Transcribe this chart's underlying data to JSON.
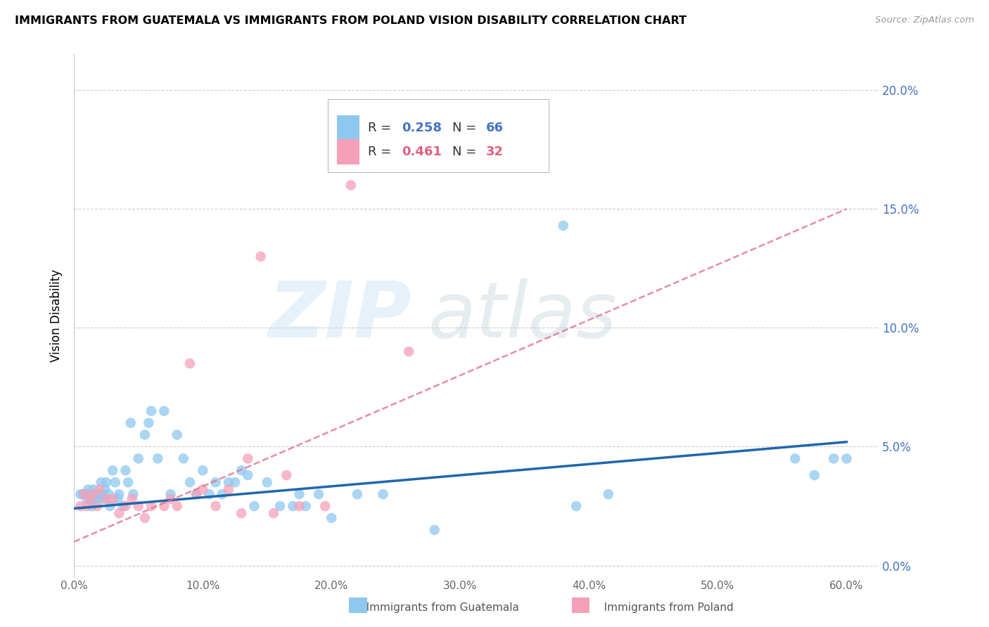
{
  "title": "IMMIGRANTS FROM GUATEMALA VS IMMIGRANTS FROM POLAND VISION DISABILITY CORRELATION CHART",
  "source": "Source: ZipAtlas.com",
  "ylabel": "Vision Disability",
  "ytick_values": [
    0.0,
    0.05,
    0.1,
    0.15,
    0.2
  ],
  "xtick_values": [
    0.0,
    0.1,
    0.2,
    0.3,
    0.4,
    0.5,
    0.6
  ],
  "xlim": [
    0.0,
    0.625
  ],
  "ylim": [
    -0.005,
    0.215
  ],
  "guatemala_R": 0.258,
  "guatemala_N": 66,
  "poland_R": 0.461,
  "poland_N": 32,
  "guatemala_color": "#8EC8F0",
  "poland_color": "#F5A0B8",
  "guatemala_line_color": "#2166AC",
  "poland_line_color": "#E07090",
  "guatemala_scatter_x": [
    0.005,
    0.007,
    0.008,
    0.01,
    0.011,
    0.012,
    0.013,
    0.014,
    0.015,
    0.016,
    0.017,
    0.018,
    0.02,
    0.021,
    0.022,
    0.023,
    0.024,
    0.025,
    0.027,
    0.028,
    0.03,
    0.032,
    0.034,
    0.035,
    0.038,
    0.04,
    0.042,
    0.044,
    0.046,
    0.05,
    0.055,
    0.058,
    0.06,
    0.065,
    0.07,
    0.075,
    0.08,
    0.085,
    0.09,
    0.095,
    0.1,
    0.105,
    0.11,
    0.115,
    0.12,
    0.125,
    0.13,
    0.135,
    0.14,
    0.15,
    0.16,
    0.17,
    0.175,
    0.18,
    0.19,
    0.2,
    0.22,
    0.24,
    0.28,
    0.38,
    0.39,
    0.415,
    0.56,
    0.575,
    0.59,
    0.6
  ],
  "guatemala_scatter_y": [
    0.03,
    0.03,
    0.03,
    0.028,
    0.032,
    0.03,
    0.028,
    0.025,
    0.032,
    0.028,
    0.03,
    0.028,
    0.03,
    0.035,
    0.03,
    0.028,
    0.032,
    0.035,
    0.03,
    0.025,
    0.04,
    0.035,
    0.028,
    0.03,
    0.025,
    0.04,
    0.035,
    0.06,
    0.03,
    0.045,
    0.055,
    0.06,
    0.065,
    0.045,
    0.065,
    0.03,
    0.055,
    0.045,
    0.035,
    0.03,
    0.04,
    0.03,
    0.035,
    0.03,
    0.035,
    0.035,
    0.04,
    0.038,
    0.025,
    0.035,
    0.025,
    0.025,
    0.03,
    0.025,
    0.03,
    0.02,
    0.03,
    0.03,
    0.015,
    0.143,
    0.025,
    0.03,
    0.045,
    0.038,
    0.045,
    0.045
  ],
  "poland_scatter_x": [
    0.005,
    0.008,
    0.01,
    0.012,
    0.015,
    0.018,
    0.02,
    0.025,
    0.03,
    0.035,
    0.04,
    0.045,
    0.05,
    0.055,
    0.06,
    0.07,
    0.075,
    0.08,
    0.09,
    0.095,
    0.1,
    0.11,
    0.12,
    0.13,
    0.135,
    0.145,
    0.155,
    0.165,
    0.175,
    0.195,
    0.215,
    0.26
  ],
  "poland_scatter_y": [
    0.025,
    0.03,
    0.025,
    0.028,
    0.03,
    0.025,
    0.032,
    0.028,
    0.028,
    0.022,
    0.025,
    0.028,
    0.025,
    0.02,
    0.025,
    0.025,
    0.028,
    0.025,
    0.085,
    0.03,
    0.032,
    0.025,
    0.032,
    0.022,
    0.045,
    0.13,
    0.022,
    0.038,
    0.025,
    0.025,
    0.16,
    0.09
  ],
  "guatemala_line_x0": 0.0,
  "guatemala_line_y0": 0.024,
  "guatemala_line_x1": 0.6,
  "guatemala_line_y1": 0.052,
  "poland_line_x0": 0.0,
  "poland_line_y0": 0.01,
  "poland_line_x1": 0.6,
  "poland_line_y1": 0.15
}
